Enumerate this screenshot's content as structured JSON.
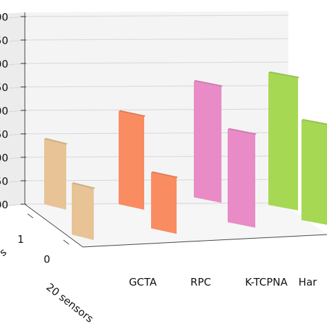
{
  "chart_data": {
    "type": "bar",
    "projection": "3d",
    "categories": [
      "GCTA",
      "RPC",
      "K-TCPNA",
      "Har"
    ],
    "series_axis_ticks": [
      "0",
      "1"
    ],
    "series_axis_label": "s",
    "x_tick_text": "20 sensors",
    "series": [
      {
        "name": "",
        "values": [
          2.8,
          4.0,
          5.0,
          5.7
        ]
      },
      {
        "name": "",
        "values": [
          2.2,
          2.4,
          4.0,
          4.3
        ]
      }
    ],
    "colors": [
      "#e8c396",
      "#fa8c61",
      "#e88bc6",
      "#a6d854"
    ],
    "y_tick_labels": [
      "00",
      "50",
      "00",
      "50",
      "00",
      "50",
      "00",
      "50",
      "00"
    ],
    "ylim": [
      0,
      6
    ],
    "grid": true
  }
}
